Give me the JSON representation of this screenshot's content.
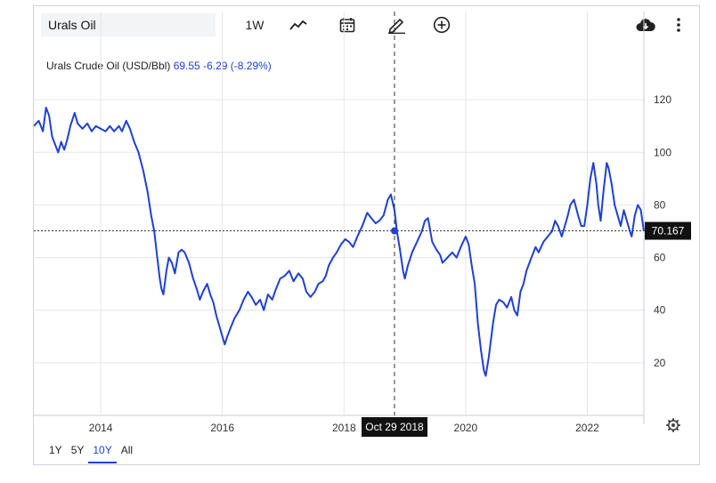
{
  "toolbar": {
    "search_value": "Urals Oil",
    "interval_label": "1W",
    "icons": [
      "line-chart-icon",
      "calendar-icon",
      "pencil-icon",
      "add-circle-icon",
      "cloud-download-icon",
      "more-vertical-icon"
    ]
  },
  "legend": {
    "name": "Urals Crude Oil (USD/Bbl)",
    "value": "69.55",
    "change": "-6.29 (-8.29%)"
  },
  "crosshair": {
    "date_label": "Oct 29 2018",
    "price_label": "70.167"
  },
  "ranges": [
    {
      "label": "1Y",
      "active": false
    },
    {
      "label": "5Y",
      "active": false
    },
    {
      "label": "10Y",
      "active": true
    },
    {
      "label": "All",
      "active": false
    }
  ],
  "colors": {
    "line": "#1f3fd6",
    "grid": "#e3e6ea",
    "label_bg": "#111111"
  },
  "chart_data": {
    "type": "line",
    "title": "Urals Crude Oil (USD/Bbl)",
    "xlabel": "",
    "ylabel": "",
    "y_ticks": [
      20,
      40,
      60,
      80,
      100,
      120
    ],
    "x_ticks": [
      {
        "t": 2014,
        "label": "2014"
      },
      {
        "t": 2016,
        "label": "2016"
      },
      {
        "t": 2018,
        "label": "2018"
      },
      {
        "t": 2020,
        "label": "2020"
      },
      {
        "t": 2022,
        "label": "2022"
      }
    ],
    "xlim": [
      2012.9,
      2022.93
    ],
    "ylim": [
      0,
      140
    ],
    "grid": true,
    "series": [
      {
        "name": "Urals Crude Oil",
        "points": [
          [
            2012.9,
            110
          ],
          [
            2012.98,
            112
          ],
          [
            2013.05,
            108
          ],
          [
            2013.1,
            117
          ],
          [
            2013.15,
            114
          ],
          [
            2013.2,
            106
          ],
          [
            2013.25,
            103
          ],
          [
            2013.3,
            100
          ],
          [
            2013.35,
            104
          ],
          [
            2013.4,
            101
          ],
          [
            2013.45,
            105
          ],
          [
            2013.5,
            110
          ],
          [
            2013.57,
            115
          ],
          [
            2013.62,
            111
          ],
          [
            2013.7,
            109
          ],
          [
            2013.78,
            111
          ],
          [
            2013.85,
            108
          ],
          [
            2013.92,
            110
          ],
          [
            2014.0,
            109
          ],
          [
            2014.08,
            108
          ],
          [
            2014.15,
            110
          ],
          [
            2014.22,
            108
          ],
          [
            2014.3,
            110
          ],
          [
            2014.35,
            108
          ],
          [
            2014.42,
            112
          ],
          [
            2014.48,
            109
          ],
          [
            2014.55,
            104
          ],
          [
            2014.62,
            100
          ],
          [
            2014.7,
            93
          ],
          [
            2014.77,
            85
          ],
          [
            2014.83,
            76
          ],
          [
            2014.88,
            70
          ],
          [
            2014.93,
            60
          ],
          [
            2014.97,
            52
          ],
          [
            2015.0,
            48
          ],
          [
            2015.03,
            46
          ],
          [
            2015.08,
            55
          ],
          [
            2015.12,
            60
          ],
          [
            2015.17,
            58
          ],
          [
            2015.22,
            54
          ],
          [
            2015.28,
            62
          ],
          [
            2015.33,
            63
          ],
          [
            2015.38,
            62
          ],
          [
            2015.45,
            58
          ],
          [
            2015.52,
            52
          ],
          [
            2015.58,
            48
          ],
          [
            2015.63,
            44
          ],
          [
            2015.68,
            47
          ],
          [
            2015.75,
            50
          ],
          [
            2015.8,
            46
          ],
          [
            2015.85,
            43
          ],
          [
            2015.9,
            38
          ],
          [
            2015.95,
            34
          ],
          [
            2016.0,
            30
          ],
          [
            2016.04,
            27
          ],
          [
            2016.08,
            30
          ],
          [
            2016.13,
            33
          ],
          [
            2016.2,
            37
          ],
          [
            2016.28,
            40
          ],
          [
            2016.35,
            44
          ],
          [
            2016.42,
            47
          ],
          [
            2016.48,
            45
          ],
          [
            2016.55,
            42
          ],
          [
            2016.62,
            44
          ],
          [
            2016.68,
            40
          ],
          [
            2016.75,
            46
          ],
          [
            2016.82,
            44
          ],
          [
            2016.88,
            48
          ],
          [
            2016.95,
            52
          ],
          [
            2017.02,
            53
          ],
          [
            2017.1,
            55
          ],
          [
            2017.17,
            51
          ],
          [
            2017.25,
            54
          ],
          [
            2017.32,
            52
          ],
          [
            2017.38,
            47
          ],
          [
            2017.45,
            45
          ],
          [
            2017.52,
            47
          ],
          [
            2017.58,
            50
          ],
          [
            2017.65,
            51
          ],
          [
            2017.7,
            53
          ],
          [
            2017.75,
            57
          ],
          [
            2017.82,
            60
          ],
          [
            2017.88,
            62
          ],
          [
            2017.95,
            65
          ],
          [
            2018.02,
            67
          ],
          [
            2018.08,
            66
          ],
          [
            2018.15,
            64
          ],
          [
            2018.22,
            68
          ],
          [
            2018.3,
            72
          ],
          [
            2018.38,
            77
          ],
          [
            2018.45,
            75
          ],
          [
            2018.52,
            73
          ],
          [
            2018.58,
            74
          ],
          [
            2018.65,
            76
          ],
          [
            2018.72,
            82
          ],
          [
            2018.77,
            84
          ],
          [
            2018.83,
            78
          ],
          [
            2018.87,
            70
          ],
          [
            2018.92,
            63
          ],
          [
            2018.97,
            55
          ],
          [
            2019.0,
            52
          ],
          [
            2019.05,
            57
          ],
          [
            2019.12,
            62
          ],
          [
            2019.2,
            66
          ],
          [
            2019.28,
            70
          ],
          [
            2019.33,
            74
          ],
          [
            2019.38,
            75
          ],
          [
            2019.45,
            66
          ],
          [
            2019.52,
            63
          ],
          [
            2019.58,
            61
          ],
          [
            2019.62,
            58
          ],
          [
            2019.7,
            60
          ],
          [
            2019.78,
            62
          ],
          [
            2019.85,
            60
          ],
          [
            2019.92,
            64
          ],
          [
            2020.0,
            68
          ],
          [
            2020.05,
            65
          ],
          [
            2020.1,
            57
          ],
          [
            2020.15,
            50
          ],
          [
            2020.2,
            35
          ],
          [
            2020.25,
            25
          ],
          [
            2020.3,
            17
          ],
          [
            2020.33,
            15
          ],
          [
            2020.38,
            22
          ],
          [
            2020.45,
            35
          ],
          [
            2020.5,
            42
          ],
          [
            2020.55,
            44
          ],
          [
            2020.62,
            43
          ],
          [
            2020.68,
            41
          ],
          [
            2020.75,
            45
          ],
          [
            2020.8,
            40
          ],
          [
            2020.85,
            38
          ],
          [
            2020.9,
            47
          ],
          [
            2020.95,
            50
          ],
          [
            2021.0,
            55
          ],
          [
            2021.08,
            60
          ],
          [
            2021.15,
            64
          ],
          [
            2021.2,
            62
          ],
          [
            2021.28,
            66
          ],
          [
            2021.35,
            68
          ],
          [
            2021.42,
            70
          ],
          [
            2021.47,
            74
          ],
          [
            2021.52,
            72
          ],
          [
            2021.58,
            68
          ],
          [
            2021.63,
            72
          ],
          [
            2021.68,
            76
          ],
          [
            2021.72,
            80
          ],
          [
            2021.78,
            82
          ],
          [
            2021.85,
            76
          ],
          [
            2021.9,
            72
          ],
          [
            2021.95,
            72
          ],
          [
            2022.0,
            80
          ],
          [
            2022.05,
            90
          ],
          [
            2022.1,
            96
          ],
          [
            2022.15,
            88
          ],
          [
            2022.18,
            80
          ],
          [
            2022.22,
            74
          ],
          [
            2022.27,
            86
          ],
          [
            2022.32,
            96
          ],
          [
            2022.35,
            94
          ],
          [
            2022.4,
            88
          ],
          [
            2022.45,
            80
          ],
          [
            2022.5,
            76
          ],
          [
            2022.55,
            72
          ],
          [
            2022.6,
            78
          ],
          [
            2022.65,
            74
          ],
          [
            2022.7,
            70
          ],
          [
            2022.73,
            68
          ],
          [
            2022.78,
            76
          ],
          [
            2022.83,
            80
          ],
          [
            2022.88,
            78
          ],
          [
            2022.93,
            70
          ]
        ]
      }
    ]
  }
}
